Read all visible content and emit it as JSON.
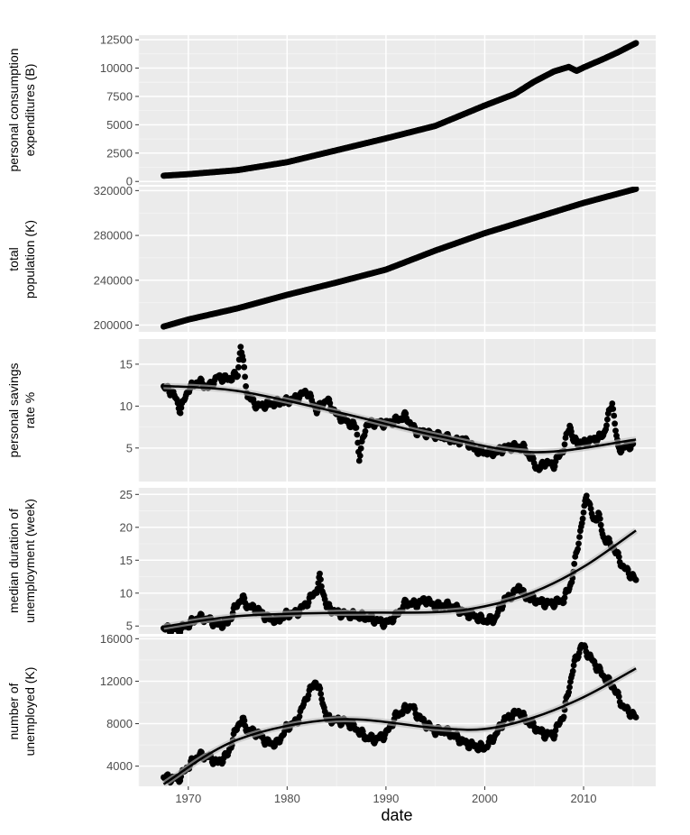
{
  "colors": {
    "panel_bg": "#ebebeb",
    "grid_major": "#ffffff",
    "grid_minor": "#f5f5f5",
    "points": "#000000",
    "smooth_line": "#000000",
    "smooth_band": "#bdbdbd",
    "tick_text": "#4d4d4d"
  },
  "chart_data": {
    "type": "scatter",
    "layout": "faceted-vertical",
    "shared_x": {
      "label": "date",
      "range": [
        1965.0,
        2017.3
      ],
      "ticks": [
        1970,
        1980,
        1990,
        2000,
        2010
      ],
      "tick_labels": [
        "1970",
        "1980",
        "1990",
        "2000",
        "2010"
      ],
      "grid": true
    },
    "panels": [
      {
        "id": "pce",
        "ylabel_lines": [
          "personal consumption",
          "expenditures (B)"
        ],
        "ylim": [
          -300,
          12900
        ],
        "ticks": [
          0,
          2500,
          5000,
          7500,
          10000,
          12500
        ],
        "tick_labels": [
          "0",
          "2500",
          "5000",
          "7500",
          "10000",
          "12500"
        ],
        "smooth": false,
        "series": [
          {
            "x": [
              1967.5,
              1970,
              1975,
              1980,
              1985,
              1990,
              1995,
              2000,
              2003,
              2005,
              2007,
              2008.5,
              2009.3,
              2010,
              2012,
              2013.5,
              2015.3
            ],
            "y": [
              507,
              640,
              1000,
              1700,
              2750,
              3800,
              4900,
              6700,
              7700,
              8800,
              9700,
              10100,
              9750,
              10050,
              10800,
              11400,
              12200
            ]
          }
        ]
      },
      {
        "id": "pop",
        "ylabel_lines": [
          "total",
          "population (K)"
        ],
        "ylim": [
          194000,
          323500
        ],
        "ticks": [
          200000,
          240000,
          280000,
          320000
        ],
        "tick_labels": [
          "200000",
          "240000",
          "280000",
          "320000"
        ],
        "smooth": false,
        "series": [
          {
            "x": [
              1967.5,
              1970,
              1975,
              1980,
              1985,
              1990,
              1995,
              2000,
              2005,
              2010,
              2015.3
            ],
            "y": [
              198700,
              205000,
              215000,
              227000,
              238000,
              249500,
              266500,
              282000,
              295500,
              309000,
              321500
            ]
          }
        ]
      },
      {
        "id": "psavert",
        "ylabel_lines": [
          "personal savings",
          "rate %"
        ],
        "ylim": [
          1.0,
          18.0
        ],
        "ticks": [
          5,
          10,
          15
        ],
        "tick_labels": [
          "5",
          "10",
          "15"
        ],
        "smooth": true,
        "series": [
          {
            "x": [
              1967.5,
              1968.5,
              1969.2,
              1970,
              1971,
              1972,
              1973,
              1974,
              1975,
              1975.3,
              1976,
              1977,
              1978,
              1979,
              1980,
              1981,
              1982,
              1983,
              1984,
              1985,
              1986,
              1987,
              1987.3,
              1988,
              1989,
              1990,
              1991,
              1992,
              1993,
              1994,
              1995,
              1996,
              1997,
              1998,
              1999,
              2000,
              2001,
              2002,
              2003,
              2004,
              2005,
              2005.5,
              2006,
              2007,
              2008,
              2008.6,
              2009,
              2010,
              2011,
              2012,
              2012.9,
              2013.5,
              2014,
              2015
            ],
            "y": [
              12.3,
              11.5,
              9.5,
              12.0,
              13.0,
              12.2,
              13.5,
              13.2,
              13.8,
              17.3,
              11.2,
              10.0,
              10.2,
              10.4,
              10.6,
              11.0,
              11.8,
              9.5,
              10.8,
              9.0,
              8.2,
              7.5,
              3.8,
              7.8,
              8.0,
              7.9,
              8.3,
              8.8,
              7.0,
              6.8,
              6.5,
              6.3,
              5.8,
              6.0,
              4.8,
              4.5,
              4.4,
              5.0,
              5.2,
              5.0,
              3.2,
              2.4,
              3.3,
              3.0,
              5.0,
              7.8,
              5.8,
              5.6,
              6.0,
              6.5,
              10.5,
              4.8,
              5.0,
              5.5
            ]
          },
          {
            "name": "",
            "role": "smooth",
            "x": [
              1967.5,
              1975,
              1985,
              1995,
              2005,
              2015.3
            ],
            "y": [
              12.4,
              11.8,
              9.3,
              6.5,
              4.5,
              6.0
            ]
          }
        ]
      },
      {
        "id": "uempmed",
        "ylabel_lines": [
          "median duration of",
          "unemployment (week)"
        ],
        "ylim": [
          3.8,
          26.0
        ],
        "ticks": [
          5,
          10,
          15,
          20,
          25
        ],
        "tick_labels": [
          "5",
          "10",
          "15",
          "20",
          "25"
        ],
        "smooth": true,
        "series": [
          {
            "x": [
              1967.5,
              1969,
              1970,
              1971,
              1972,
              1973,
              1974,
              1975,
              1975.5,
              1976,
              1977,
              1978,
              1979,
              1980,
              1981,
              1982,
              1983,
              1983.3,
              1984,
              1985,
              1986,
              1987,
              1988,
              1989,
              1990,
              1991,
              1992,
              1993,
              1994,
              1995,
              1996,
              1997,
              1998,
              1999,
              2000,
              2001,
              2002,
              2003,
              2003.5,
              2004,
              2005,
              2006,
              2007,
              2008,
              2008.8,
              2009.5,
              2010,
              2010.3,
              2011,
              2011.5,
              2012,
              2013,
              2014,
              2015.3
            ],
            "y": [
              4.6,
              4.5,
              5.2,
              6.3,
              6.0,
              5.2,
              5.5,
              8.5,
              9.2,
              8.0,
              7.5,
              6.2,
              5.8,
              6.8,
              7.0,
              8.5,
              10.5,
              12.3,
              8.0,
              7.0,
              6.8,
              6.6,
              6.3,
              5.9,
              5.4,
              6.5,
              8.5,
              8.3,
              9.0,
              8.0,
              8.2,
              7.8,
              7.0,
              6.5,
              5.8,
              6.0,
              9.0,
              10.0,
              11.2,
              9.5,
              9.0,
              8.5,
              8.5,
              9.0,
              11.8,
              18.0,
              22.0,
              25.2,
              21.0,
              22.0,
              18.5,
              17.0,
              14.0,
              12.0
            ]
          },
          {
            "name": "",
            "role": "smooth",
            "x": [
              1967.5,
              1975,
              1985,
              1995,
              2000,
              2005,
              2010,
              2015.3
            ],
            "y": [
              4.9,
              6.5,
              7.0,
              7.1,
              8.0,
              10.2,
              14.0,
              19.5
            ]
          }
        ]
      },
      {
        "id": "unemploy",
        "ylabel_lines": [
          "number of",
          "unemployed (K)"
        ],
        "ylim": [
          2100,
          16200
        ],
        "ticks": [
          4000,
          8000,
          12000,
          16000
        ],
        "tick_labels": [
          "4000",
          "8000",
          "12000",
          "16000"
        ],
        "smooth": true,
        "series": [
          {
            "x": [
              1967.5,
              1969,
              1970,
              1971,
              1972,
              1973,
              1974,
              1975,
              1975.5,
              1976,
              1977,
              1978,
              1979,
              1980,
              1981,
              1982,
              1982.9,
              1983.5,
              1984,
              1985,
              1986,
              1987,
              1988,
              1989,
              1990,
              1991,
              1992,
              1992.6,
              1993,
              1994,
              1995,
              1996,
              1997,
              1998,
              1999,
              2000,
              2001,
              2002,
              2003,
              2003.5,
              2004,
              2005,
              2006,
              2007,
              2008,
              2009,
              2009.8,
              2010,
              2011,
              2012,
              2013,
              2014,
              2015.3
            ],
            "y": [
              2900,
              2800,
              4000,
              5000,
              4900,
              4300,
              5100,
              7900,
              8300,
              7400,
              7100,
              6200,
              6100,
              7700,
              8200,
              10600,
              12000,
              10500,
              8500,
              8300,
              8200,
              7500,
              6700,
              6500,
              7000,
              8700,
              9400,
              9700,
              9000,
              8000,
              7300,
              7300,
              6800,
              6200,
              5900,
              5700,
              6800,
              8400,
              8900,
              9200,
              8500,
              7700,
              7000,
              7000,
              8900,
              13500,
              15400,
              15200,
              13800,
              12500,
              11500,
              9600,
              8600
            ]
          },
          {
            "name": "",
            "role": "smooth",
            "x": [
              1967.5,
              1975,
              1985,
              1995,
              2000,
              2005,
              2010,
              2015.3
            ],
            "y": [
              2300,
              6500,
              8400,
              7600,
              7500,
              8600,
              10500,
              13200
            ]
          }
        ]
      }
    ]
  }
}
